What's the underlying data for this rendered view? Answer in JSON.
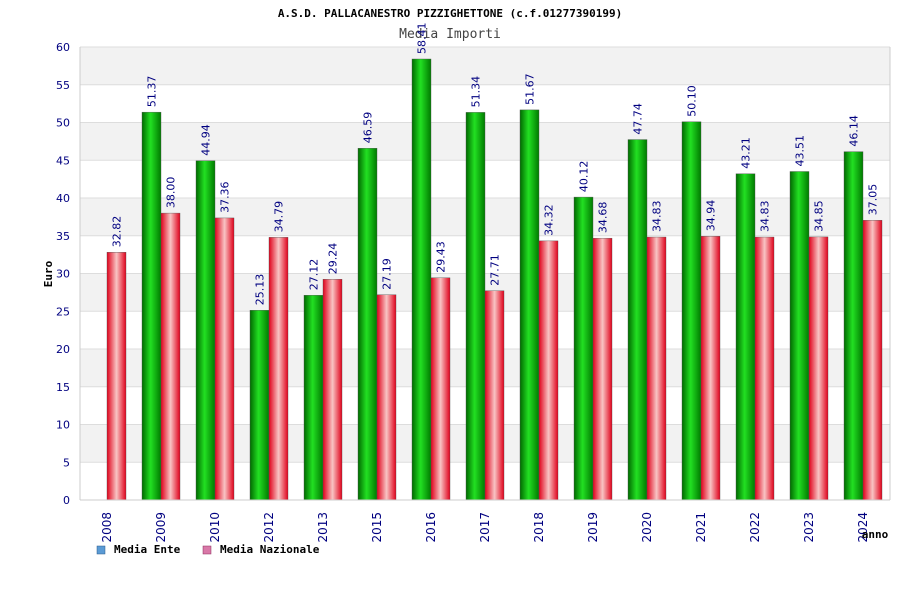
{
  "chart_data": {
    "type": "bar",
    "title": "A.S.D. PALLACANESTRO PIZZIGHETTONE (c.f.01277390199)",
    "subtitle": "Media Importi",
    "xlabel": "anno",
    "ylabel": "Euro",
    "ylim": [
      0,
      60
    ],
    "yticks": [
      0,
      5,
      10,
      15,
      20,
      25,
      30,
      35,
      40,
      45,
      50,
      55,
      60
    ],
    "grid": true,
    "categories": [
      "2008",
      "2009",
      "2010",
      "2012",
      "2013",
      "2015",
      "2016",
      "2017",
      "2018",
      "2019",
      "2020",
      "2021",
      "2022",
      "2023",
      "2024"
    ],
    "series": [
      {
        "name": "Media Ente",
        "values": [
          null,
          51.37,
          44.94,
          25.13,
          27.12,
          46.59,
          58.41,
          51.34,
          51.67,
          40.12,
          47.74,
          50.1,
          43.21,
          43.51,
          46.14
        ],
        "labels": [
          "",
          "51.37",
          "44.94",
          "25.13",
          "27.12",
          "46.59",
          "58.41",
          "51.34",
          "51.67",
          "40.12",
          "47.74",
          "50.10",
          "43.21",
          "43.51",
          "46.14"
        ]
      },
      {
        "name": "Media Nazionale",
        "values": [
          32.82,
          38.0,
          37.36,
          34.79,
          29.24,
          27.19,
          29.43,
          27.71,
          34.32,
          34.68,
          34.83,
          34.94,
          34.83,
          34.85,
          37.05
        ],
        "labels": [
          "32.82",
          "38.00",
          "37.36",
          "34.79",
          "29.24",
          "27.19",
          "29.43",
          "27.71",
          "34.32",
          "34.68",
          "34.83",
          "34.94",
          "34.83",
          "34.85",
          "37.05"
        ]
      }
    ],
    "legend": {
      "position": "bottom-left",
      "entries": [
        "Media Ente",
        "Media Nazionale"
      ],
      "colors": [
        "#5b9bd5",
        "#d978a8"
      ]
    },
    "colors": {
      "ente_dark": "#006400",
      "ente_light": "#22dd22",
      "naz_dark": "#e0001a",
      "naz_light": "#f8c8c8",
      "label": "#000080",
      "band": "#f2f2f2",
      "grid": "#dddddd"
    }
  }
}
